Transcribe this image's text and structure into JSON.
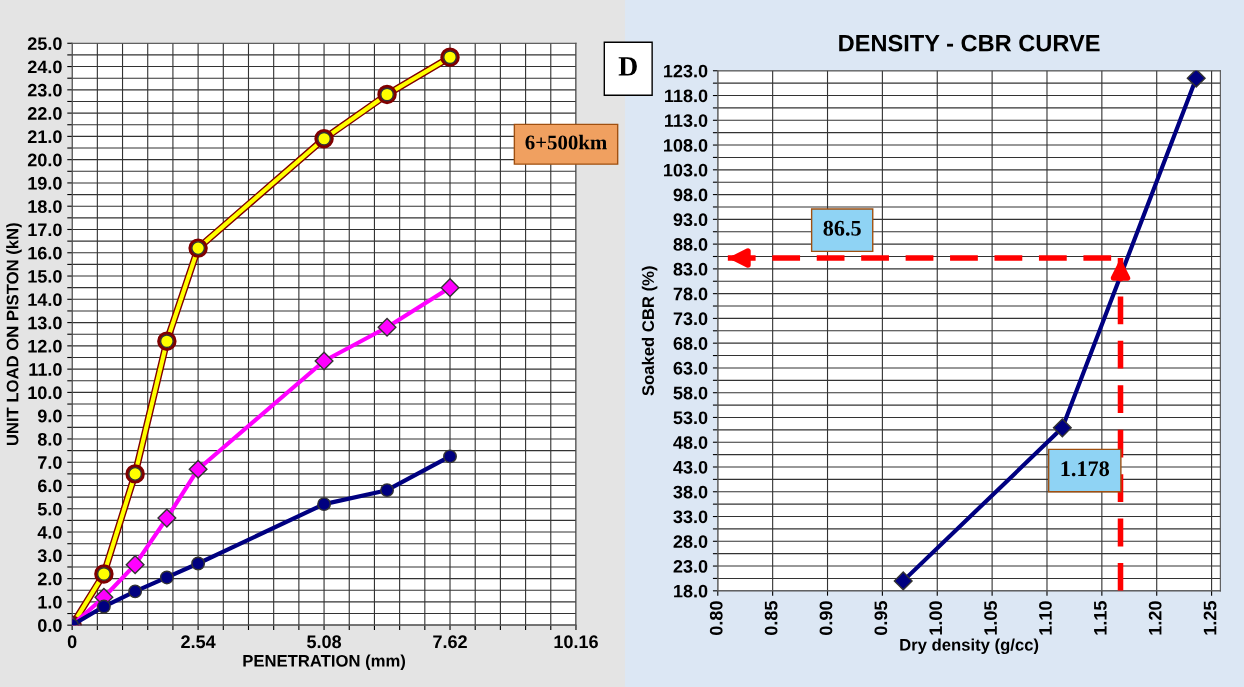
{
  "chart_data": [
    {
      "type": "line",
      "xlabel": "PENETRATION (mm)",
      "ylabel": "UNIT LOAD ON PISTON (kN)",
      "annotations": [
        "D",
        "6+500km"
      ],
      "x": [
        0,
        0.64,
        1.27,
        1.91,
        2.54,
        5.08,
        6.35,
        7.62
      ],
      "series": [
        {
          "color": "#ffff00",
          "marker": "circle",
          "values": [
            0,
            2.2,
            6.5,
            12.2,
            16.2,
            20.9,
            22.8,
            24.4
          ]
        },
        {
          "color": "#ff00ff",
          "marker": "diamond",
          "values": [
            0,
            1.2,
            2.6,
            4.6,
            6.7,
            11.35,
            12.8,
            14.5
          ]
        },
        {
          "color": "#000080",
          "marker": "circle",
          "values": [
            0,
            0.8,
            1.45,
            2.05,
            2.65,
            5.2,
            5.8,
            7.25
          ]
        }
      ],
      "xlim": [
        0,
        10.16
      ],
      "xticks": [
        0,
        {
          "value": 0.508,
          "label": null
        },
        {
          "value": 1.016,
          "label": null
        },
        {
          "value": 1.524,
          "label": null
        },
        {
          "value": 2.032,
          "label": null
        },
        2.54,
        {
          "value": 3.048,
          "label": null
        },
        {
          "value": 3.556,
          "label": null
        },
        {
          "value": 4.064,
          "label": null
        },
        {
          "value": 4.572,
          "label": null
        },
        5.08,
        {
          "value": 5.588,
          "label": null
        },
        {
          "value": 6.096,
          "label": null
        },
        {
          "value": 6.604,
          "label": null
        },
        {
          "value": 7.112,
          "label": null
        },
        7.62,
        {
          "value": 8.128,
          "label": null
        },
        {
          "value": 8.636,
          "label": null
        },
        {
          "value": 9.144,
          "label": null
        },
        {
          "value": 9.652,
          "label": null
        },
        10.16
      ],
      "ylim": [
        0,
        25
      ],
      "yticks": [
        {
          "value": 0,
          "label": "0.0"
        },
        {
          "value": 0.5,
          "label": null
        },
        {
          "value": 1,
          "label": "1.0"
        },
        {
          "value": 1.5,
          "label": null
        },
        {
          "value": 2,
          "label": "2.0"
        },
        {
          "value": 2.5,
          "label": null
        },
        {
          "value": 3,
          "label": "3.0"
        },
        {
          "value": 3.5,
          "label": null
        },
        {
          "value": 4,
          "label": "4.0"
        },
        {
          "value": 4.5,
          "label": null
        },
        {
          "value": 5,
          "label": "5.0"
        },
        {
          "value": 5.5,
          "label": null
        },
        {
          "value": 6,
          "label": "6.0"
        },
        {
          "value": 6.5,
          "label": null
        },
        {
          "value": 7,
          "label": "7.0"
        },
        {
          "value": 7.5,
          "label": null
        },
        {
          "value": 8,
          "label": "8.0"
        },
        {
          "value": 8.5,
          "label": null
        },
        {
          "value": 9,
          "label": "9.0"
        },
        {
          "value": 9.5,
          "label": null
        },
        {
          "value": 10,
          "label": "10.0"
        },
        {
          "value": 10.5,
          "label": null
        },
        {
          "value": 11,
          "label": "11.0"
        },
        {
          "value": 11.5,
          "label": null
        },
        {
          "value": 12,
          "label": "12.0"
        },
        {
          "value": 12.5,
          "label": null
        },
        {
          "value": 13,
          "label": "13.0"
        },
        {
          "value": 13.5,
          "label": null
        },
        {
          "value": 14,
          "label": "14.0"
        },
        {
          "value": 14.5,
          "label": null
        },
        {
          "value": 15,
          "label": "15.0"
        },
        {
          "value": 15.5,
          "label": null
        },
        {
          "value": 16,
          "label": "16.0"
        },
        {
          "value": 16.5,
          "label": null
        },
        {
          "value": 17,
          "label": "17.0"
        },
        {
          "value": 17.5,
          "label": null
        },
        {
          "value": 18,
          "label": "18.0"
        },
        {
          "value": 18.5,
          "label": null
        },
        {
          "value": 19,
          "label": "19.0"
        },
        {
          "value": 19.5,
          "label": null
        },
        {
          "value": 20,
          "label": "20.0"
        },
        {
          "value": 20.5,
          "label": null
        },
        {
          "value": 21,
          "label": "21.0"
        },
        {
          "value": 21.5,
          "label": null
        },
        {
          "value": 22,
          "label": "22.0"
        },
        {
          "value": 22.5,
          "label": null
        },
        {
          "value": 23,
          "label": "23.0"
        },
        {
          "value": 23.5,
          "label": null
        },
        {
          "value": 24,
          "label": "24.0"
        },
        {
          "value": 24.5,
          "label": null
        },
        {
          "value": 25,
          "label": "25.0"
        }
      ],
      "grid": true
    },
    {
      "type": "line",
      "title": "DENSITY - CBR CURVE",
      "xlabel": "Dry density (g/cc)",
      "ylabel": "Soaked CBR (%)",
      "marker": "diamond",
      "x": [
        0.969,
        1.114,
        1.236
      ],
      "series": [
        {
          "color": "#000080",
          "values": [
            20.0,
            50.9,
            121.5
          ]
        }
      ],
      "annotations": [
        "86.5",
        "1.178"
      ],
      "ref_lines": [
        {
          "axis": "y",
          "value": 85.2,
          "color": "#ff0000",
          "line_style": "dashed"
        },
        {
          "axis": "x",
          "value": 1.167,
          "color": "#ff0000",
          "line_style": "dashed"
        }
      ],
      "xlim": [
        0.8,
        1.258
      ],
      "xticks": [
        {
          "value": 0.8,
          "label": "0.80"
        },
        {
          "value": 0.85,
          "label": "0.85"
        },
        {
          "value": 0.9,
          "label": "0.90"
        },
        {
          "value": 0.95,
          "label": "0.95"
        },
        {
          "value": 1.0,
          "label": "1.00"
        },
        {
          "value": 1.05,
          "label": "1.05"
        },
        {
          "value": 1.1,
          "label": "1.10"
        },
        {
          "value": 1.15,
          "label": "1.15"
        },
        {
          "value": 1.2,
          "label": "1.20"
        },
        {
          "value": 1.25,
          "label": "1.25"
        }
      ],
      "ylim": [
        18,
        123
      ],
      "yticks": [
        {
          "value": 18,
          "label": "18.0"
        },
        {
          "value": 20.5,
          "label": null
        },
        {
          "value": 23,
          "label": "23.0"
        },
        {
          "value": 25.5,
          "label": null
        },
        {
          "value": 28,
          "label": "28.0"
        },
        {
          "value": 30.5,
          "label": null
        },
        {
          "value": 33,
          "label": "33.0"
        },
        {
          "value": 35.5,
          "label": null
        },
        {
          "value": 38,
          "label": "38.0"
        },
        {
          "value": 40.5,
          "label": null
        },
        {
          "value": 43,
          "label": "43.0"
        },
        {
          "value": 45.5,
          "label": null
        },
        {
          "value": 48,
          "label": "48.0"
        },
        {
          "value": 50.5,
          "label": null
        },
        {
          "value": 53,
          "label": "53.0"
        },
        {
          "value": 55.5,
          "label": null
        },
        {
          "value": 58,
          "label": "58.0"
        },
        {
          "value": 60.5,
          "label": null
        },
        {
          "value": 63,
          "label": "63.0"
        },
        {
          "value": 65.5,
          "label": null
        },
        {
          "value": 68,
          "label": "68.0"
        },
        {
          "value": 70.5,
          "label": null
        },
        {
          "value": 73,
          "label": "73.0"
        },
        {
          "value": 75.5,
          "label": null
        },
        {
          "value": 78,
          "label": "78.0"
        },
        {
          "value": 80.5,
          "label": null
        },
        {
          "value": 83,
          "label": "83.0"
        },
        {
          "value": 85.5,
          "label": null
        },
        {
          "value": 88,
          "label": "88.0"
        },
        {
          "value": 90.5,
          "label": null
        },
        {
          "value": 93,
          "label": "93.0"
        },
        {
          "value": 95.5,
          "label": null
        },
        {
          "value": 98,
          "label": "98.0"
        },
        {
          "value": 100.5,
          "label": null
        },
        {
          "value": 103,
          "label": "103.0"
        },
        {
          "value": 105.5,
          "label": null
        },
        {
          "value": 108,
          "label": "108.0"
        },
        {
          "value": 110.5,
          "label": null
        },
        {
          "value": 113,
          "label": "113.0"
        },
        {
          "value": 115.5,
          "label": null
        },
        {
          "value": 118,
          "label": "118.0"
        },
        {
          "value": 120.5,
          "label": null
        },
        {
          "value": 123,
          "label": "123.0"
        }
      ],
      "grid": true
    }
  ]
}
